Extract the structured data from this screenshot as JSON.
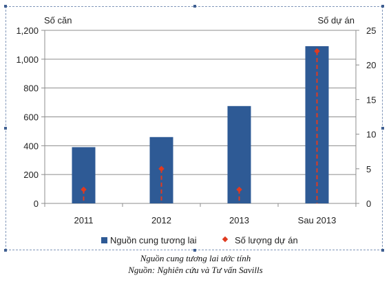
{
  "chart_data": {
    "type": "bar",
    "categories": [
      "2011",
      "2012",
      "2013",
      "Sau 2013"
    ],
    "series": [
      {
        "name": "Nguồn cung tương lai",
        "type": "bar",
        "axis": "left",
        "color": "#2e5a95",
        "values": [
          390,
          460,
          675,
          1090
        ]
      },
      {
        "name": "Số lượng dự án",
        "type": "drop-line",
        "axis": "right",
        "color": "#e03a1f",
        "values": [
          2,
          5,
          2,
          22
        ]
      }
    ],
    "y_left": {
      "label": "Số căn",
      "min": 0,
      "max": 1200,
      "ticks": [
        "0",
        "200",
        "400",
        "600",
        "800",
        "1,000",
        "1,200"
      ]
    },
    "y_right": {
      "label": "Số dự án",
      "min": 0,
      "max": 25,
      "ticks": [
        "0",
        "5",
        "10",
        "15",
        "20",
        "25"
      ]
    },
    "grid": "horizontal",
    "legend_position": "bottom"
  },
  "caption": {
    "line1": "Nguồn cung tương lai ước tính",
    "line2": "Nguồn: Nghiên cứu và Tư vấn Savills"
  }
}
